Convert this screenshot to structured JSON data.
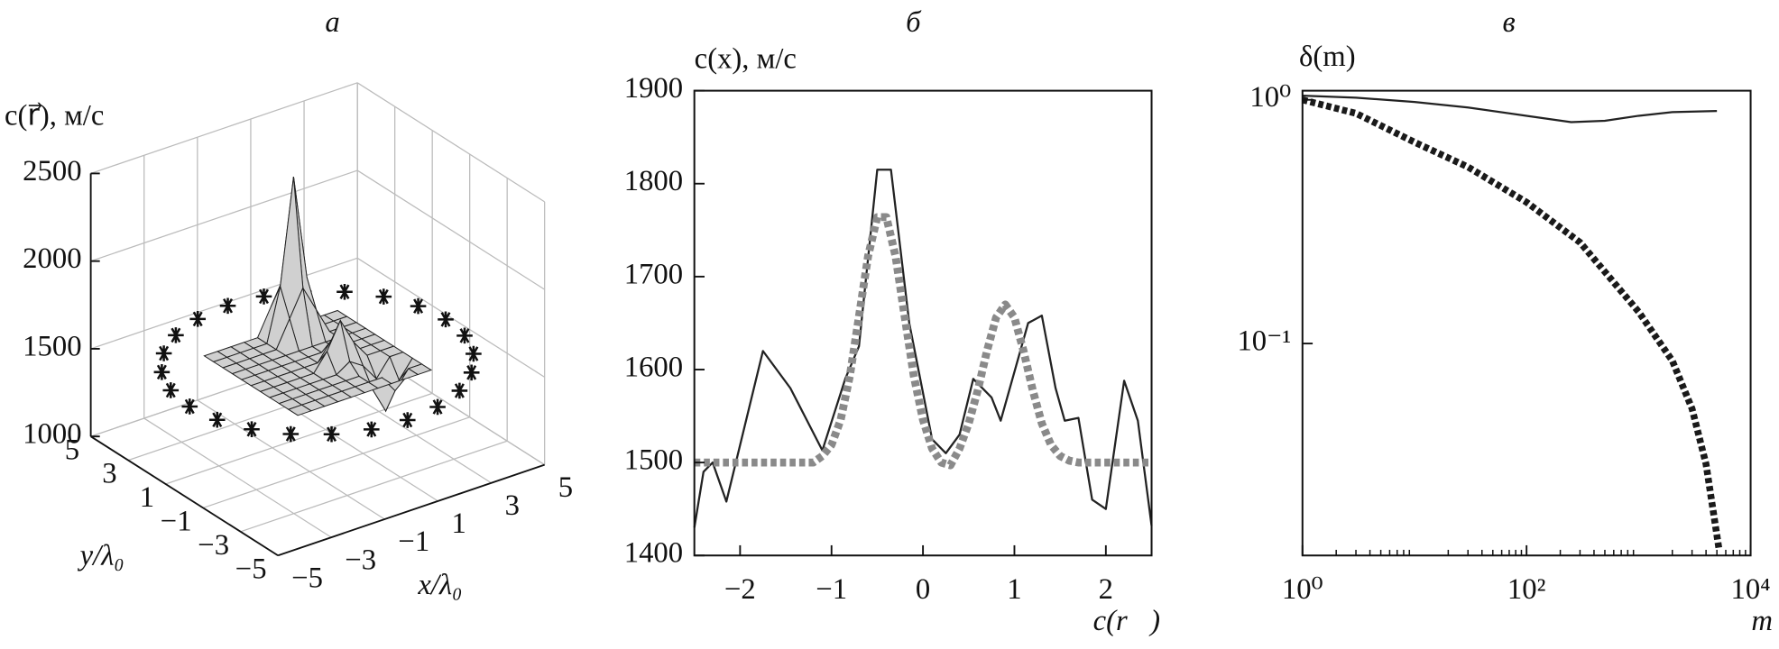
{
  "chart_data": [
    {
      "type": "surface3d",
      "title": "а",
      "zlabel": "c(r⃗), м/с",
      "xlabel": "x/λ₀",
      "ylabel": "y/λ₀",
      "xlim": [
        -5,
        5
      ],
      "ylim": [
        -5,
        5
      ],
      "zlim": [
        1000,
        2500
      ],
      "xticks": [
        {
          "value": -5,
          "label": "−5"
        },
        {
          "value": -3,
          "label": "−3"
        },
        {
          "value": -1,
          "label": "−1"
        },
        1,
        3,
        5
      ],
      "yticks": [
        {
          "value": -5,
          "label": "−5"
        },
        {
          "value": -3,
          "label": "−3"
        },
        {
          "value": -1,
          "label": "−1"
        },
        1,
        3,
        5
      ],
      "zticks": [
        1000,
        1500,
        2000,
        2500
      ],
      "grid": true,
      "surface": {
        "x": [
          -2.5,
          -2,
          -1.5,
          -1,
          -0.5,
          0,
          0.5,
          1,
          1.5,
          2,
          2.5
        ],
        "y": [
          -2.5,
          -2,
          -1.5,
          -1,
          -0.5,
          0,
          0.5,
          1,
          1.5,
          2,
          2.5
        ],
        "z": [
          [
            1500,
            1500,
            1500,
            1500,
            1500,
            1500,
            1500,
            1500,
            1500,
            1500,
            1500
          ],
          [
            1500,
            1500,
            1500,
            1500,
            1500,
            1500,
            1500,
            1500,
            1400,
            1500,
            1500
          ],
          [
            1500,
            1500,
            1500,
            1500,
            1500,
            1500,
            1500,
            1400,
            1250,
            1400,
            1500
          ],
          [
            1500,
            1500,
            1500,
            1500,
            1500,
            1500,
            1550,
            1500,
            1400,
            1500,
            1500
          ],
          [
            1500,
            1500,
            1500,
            1500,
            1500,
            1600,
            1750,
            1600,
            1500,
            1500,
            1500
          ],
          [
            1500,
            1500,
            1500,
            1500,
            1500,
            1500,
            1600,
            1500,
            1500,
            1500,
            1500
          ],
          [
            1500,
            1500,
            1500,
            1500,
            1500,
            1500,
            1500,
            1500,
            1500,
            1500,
            1500
          ],
          [
            1500,
            1500,
            1500,
            1500,
            1500,
            1500,
            1500,
            1500,
            1500,
            1500,
            1500
          ],
          [
            1500,
            1500,
            1500,
            1500,
            1500,
            1650,
            1800,
            1650,
            1500,
            1500,
            1500
          ],
          [
            1500,
            1500,
            1500,
            1500,
            1500,
            1800,
            2400,
            1800,
            1500,
            1500,
            1500
          ],
          [
            1500,
            1500,
            1500,
            1500,
            1500,
            1650,
            1800,
            1650,
            1500,
            1500,
            1500
          ]
        ],
        "color": "#d0d0d0"
      },
      "points": {
        "x": [
          4.8,
          4.64,
          4.16,
          3.39,
          2.4,
          1.24,
          0,
          -1.24,
          -2.4,
          -3.39,
          -4.16,
          -4.64,
          -4.8,
          -4.64,
          -4.16,
          -3.39,
          -2.4,
          -1.24,
          0,
          1.24,
          2.4,
          3.39,
          4.16,
          4.64
        ],
        "y": [
          0,
          1.24,
          2.4,
          3.39,
          4.16,
          4.64,
          4.8,
          4.64,
          4.16,
          3.39,
          2.4,
          1.24,
          0,
          -1.24,
          -2.4,
          -3.39,
          -4.16,
          -4.64,
          -4.8,
          -4.64,
          -4.16,
          -3.39,
          -2.4,
          -1.24
        ],
        "z": [
          1500,
          1500,
          1500,
          1500,
          1500,
          1500,
          1500,
          1500,
          1500,
          1500,
          1500,
          1500,
          1500,
          1500,
          1500,
          1500,
          1500,
          1500,
          1500,
          1500,
          1500,
          1500,
          1500,
          1500
        ],
        "color": "#111"
      }
    },
    {
      "type": "line",
      "title": "б",
      "ylabel": "c(x), м/с",
      "xlabel": "c(r⃗)",
      "xlim": [
        -2.5,
        2.5
      ],
      "ylim": [
        1400,
        1900
      ],
      "xticks": [
        {
          "value": -2,
          "label": "−2"
        },
        {
          "value": -1,
          "label": "−1"
        },
        0,
        1,
        2
      ],
      "yticks": [
        1400,
        1500,
        1600,
        1700,
        1800,
        1900
      ],
      "series": [
        {
          "color": "#222",
          "linewidth": 1.8,
          "dashed": false,
          "x": [
            -2.5,
            -2.4,
            -2.3,
            -2.15,
            -1.75,
            -1.45,
            -1.1,
            -0.85,
            -0.7,
            -0.5,
            -0.35,
            -0.15,
            0.1,
            0.25,
            0.4,
            0.55,
            0.75,
            0.85,
            1.05,
            1.15,
            1.3,
            1.45,
            1.55,
            1.7,
            1.85,
            2.0,
            2.2,
            2.35,
            2.5
          ],
          "values": [
            1430,
            1490,
            1500,
            1458,
            1620,
            1580,
            1513,
            1590,
            1625,
            1815,
            1815,
            1650,
            1525,
            1510,
            1530,
            1590,
            1570,
            1545,
            1615,
            1650,
            1658,
            1580,
            1545,
            1548,
            1460,
            1450,
            1588,
            1545,
            1432
          ]
        },
        {
          "color": "#8a8a8a",
          "linewidth": 7,
          "dashed": true,
          "x": [
            -2.5,
            -2.4,
            -2.3,
            -2.2,
            -2.1,
            -2.0,
            -1.9,
            -1.8,
            -1.7,
            -1.6,
            -1.5,
            -1.4,
            -1.3,
            -1.2,
            -1.1,
            -1.0,
            -0.9,
            -0.8,
            -0.7,
            -0.6,
            -0.5,
            -0.4,
            -0.3,
            -0.2,
            -0.1,
            0,
            0.1,
            0.2,
            0.3,
            0.4,
            0.5,
            0.6,
            0.7,
            0.8,
            0.9,
            1.0,
            1.1,
            1.2,
            1.3,
            1.4,
            1.5,
            1.6,
            1.7,
            1.8,
            1.9,
            2.0,
            2.1,
            2.2,
            2.3,
            2.4,
            2.5
          ],
          "values": [
            1500,
            1500,
            1500,
            1500,
            1500,
            1500,
            1500,
            1500,
            1500,
            1500,
            1500,
            1500,
            1500,
            1500,
            1507,
            1519,
            1546,
            1593,
            1657,
            1722,
            1764,
            1764,
            1722,
            1657,
            1593,
            1546,
            1515,
            1500,
            1497,
            1515,
            1542,
            1578,
            1620,
            1656,
            1670,
            1656,
            1620,
            1578,
            1542,
            1519,
            1507,
            1502,
            1500,
            1500,
            1500,
            1500,
            1500,
            1500,
            1500,
            1500,
            1500
          ]
        }
      ]
    },
    {
      "type": "line",
      "title": "в",
      "ylabel": "δ(m)",
      "xlabel": "m",
      "xlog": true,
      "ylog": true,
      "xlim": [
        1,
        10000
      ],
      "ylim": [
        0.0135,
        1.09
      ],
      "xticks": [
        {
          "value": 1,
          "label": "10⁰"
        },
        {
          "value": 100,
          "label": "10²"
        },
        {
          "value": 10000,
          "label": "10⁴"
        }
      ],
      "xminorticks": [
        2,
        3,
        4,
        5,
        6,
        7,
        8,
        9,
        20,
        30,
        40,
        50,
        60,
        70,
        80,
        90,
        200,
        300,
        400,
        500,
        600,
        700,
        800,
        900,
        2000,
        3000,
        4000,
        5000,
        6000,
        7000,
        8000,
        9000
      ],
      "yticks": [
        {
          "value": 1,
          "label": "10⁰"
        },
        {
          "value": 0.1,
          "label": "10⁻¹"
        }
      ],
      "series": [
        {
          "color": "#222",
          "linewidth": 1.8,
          "dashed": false,
          "x": [
            1,
            3,
            10,
            30,
            100,
            250,
            500,
            1000,
            2000,
            5000
          ],
          "values": [
            1.04,
            1.02,
            0.98,
            0.93,
            0.86,
            0.81,
            0.82,
            0.86,
            0.89,
            0.9
          ]
        },
        {
          "color": "#1a1a1a",
          "linewidth": 6,
          "dashed": true,
          "x": [
            1,
            3,
            10,
            30,
            100,
            300,
            1000,
            2000,
            3000,
            4000,
            5200
          ],
          "values": [
            1.0,
            0.88,
            0.67,
            0.53,
            0.38,
            0.26,
            0.135,
            0.085,
            0.054,
            0.032,
            0.0145
          ]
        }
      ]
    }
  ]
}
